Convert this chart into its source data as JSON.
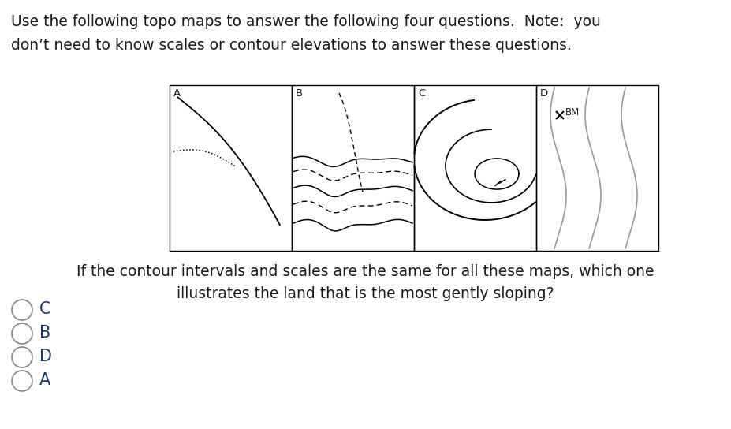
{
  "title_line1": "Use the following topo maps to answer the following four questions.  Note:  you",
  "title_line2": "don’t need to know scales or contour elevations to answer these questions.",
  "question_line1": "If the contour intervals and scales are the same for all these maps, which one",
  "question_line2": "illustrates the land that is the most gently sloping?",
  "map_labels": [
    "A",
    "B",
    "C",
    "D"
  ],
  "answer_choices": [
    "C",
    "B",
    "D",
    "A"
  ],
  "background_color": "#ffffff",
  "text_color": "#1a1a1a",
  "answer_color": "#1a3a6b",
  "contour_color": "#000000",
  "contour_color_gray": "#999999",
  "map_box_color": "#000000",
  "circle_edge_color": "#888888",
  "circle_face_color": "#ffffff"
}
